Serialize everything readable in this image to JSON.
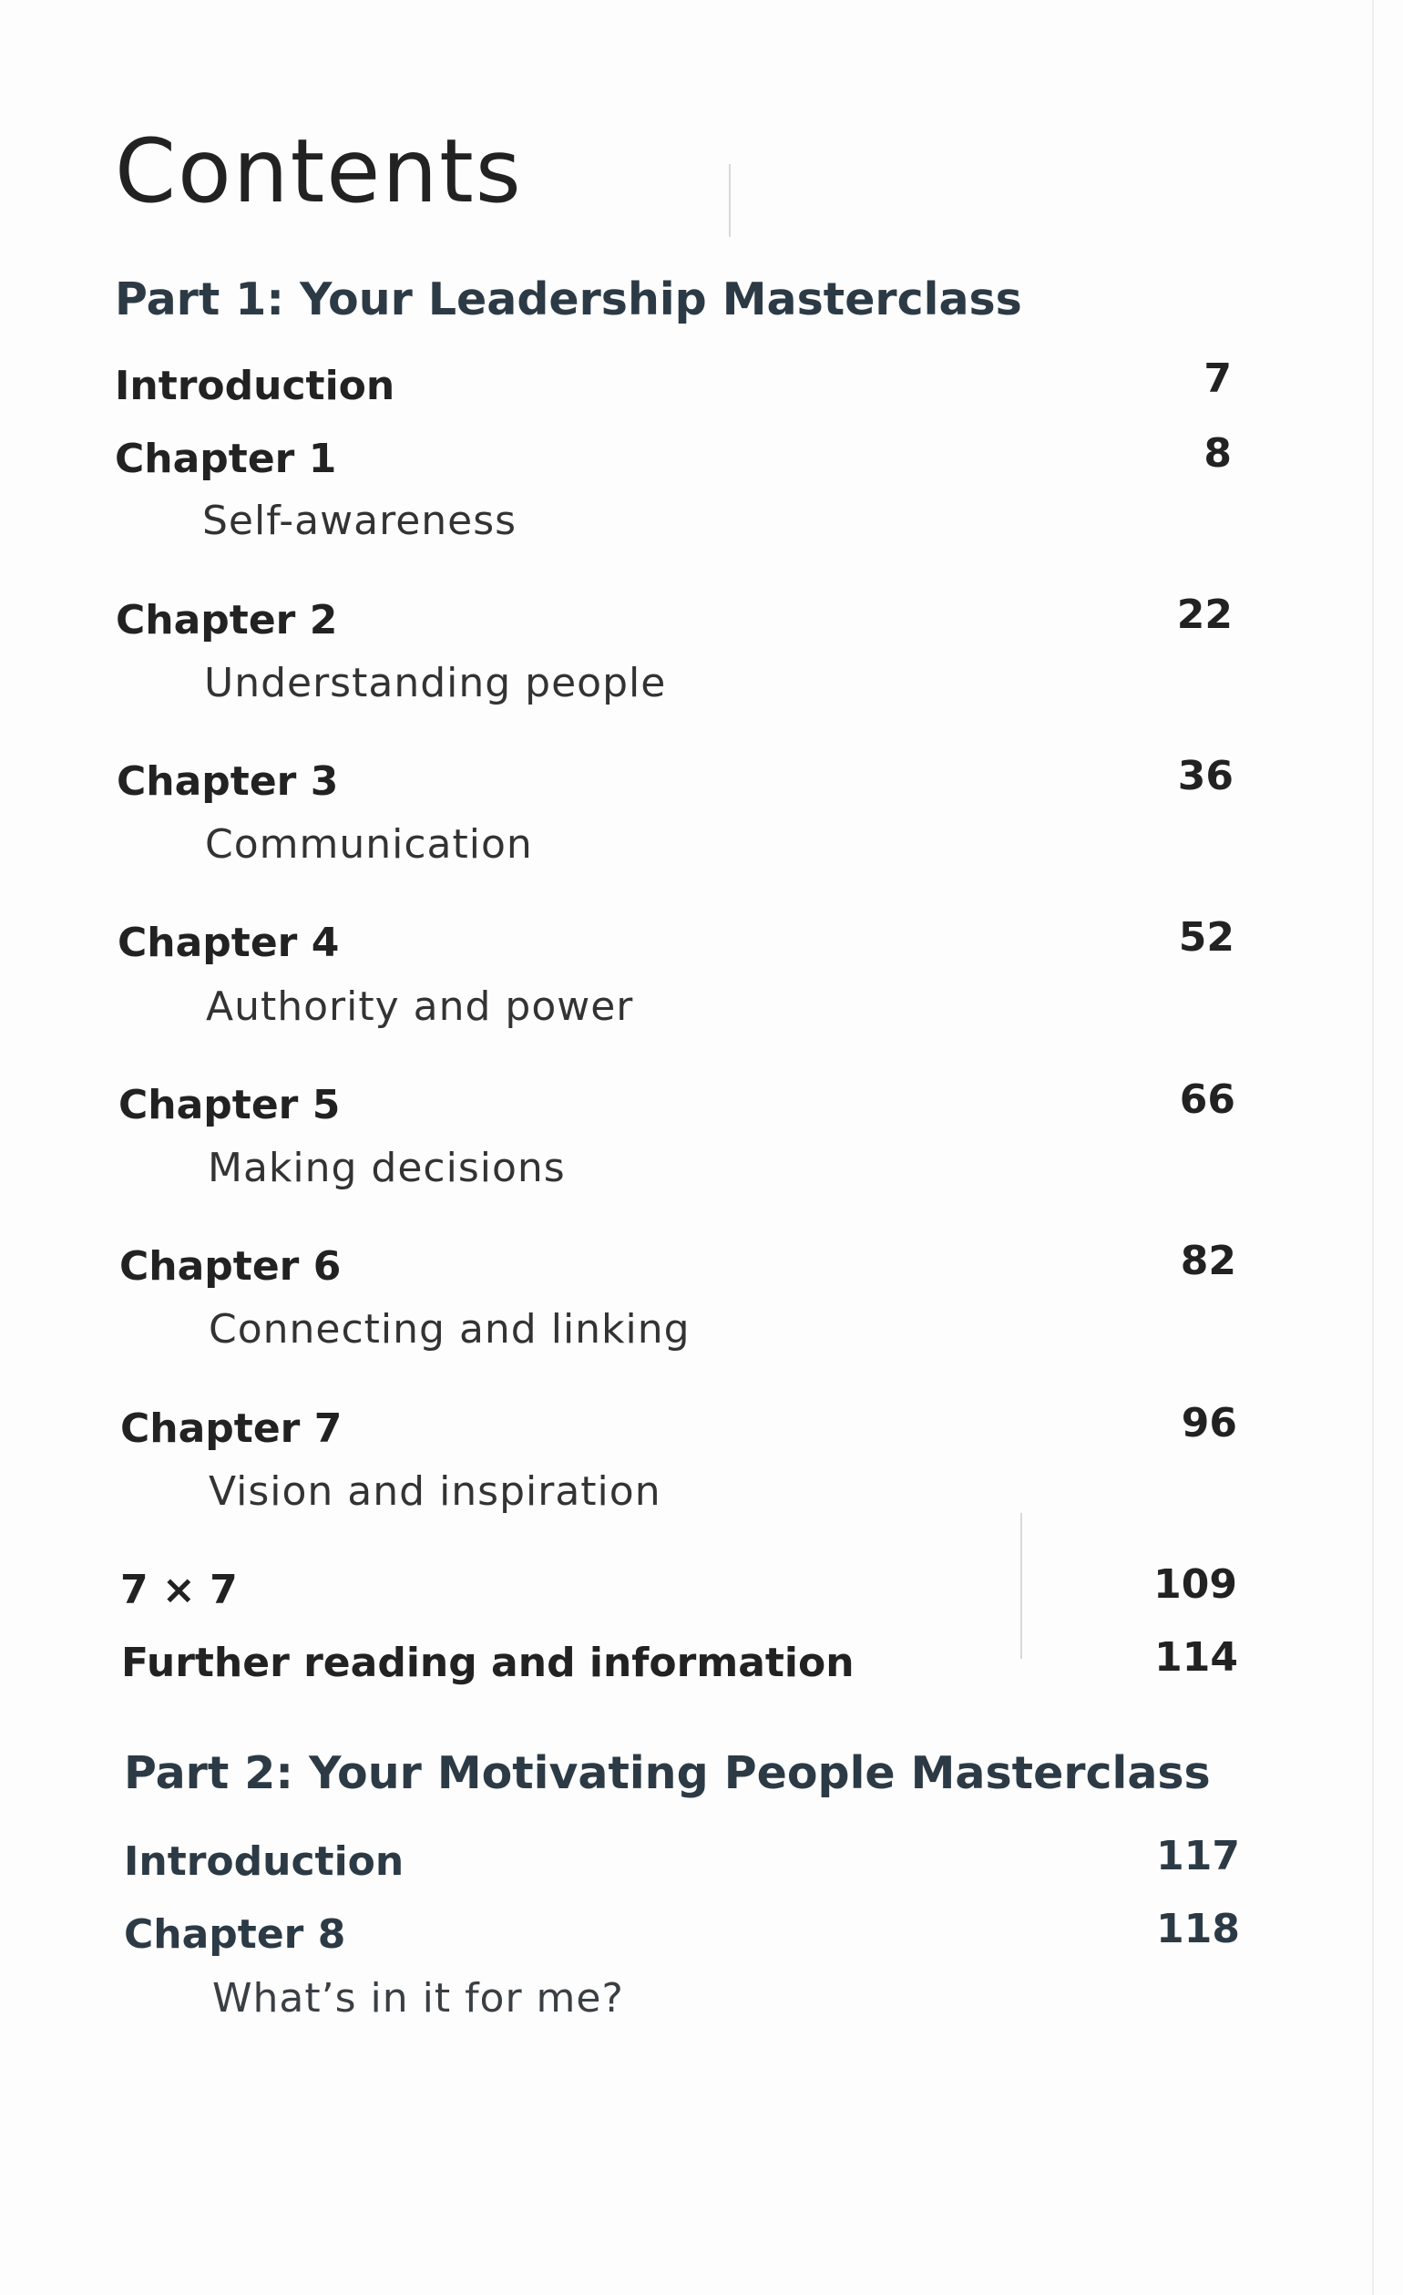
{
  "title": "Contents",
  "part1": {
    "heading": "Part 1: Your Leadership Masterclass",
    "introduction": {
      "label": "Introduction",
      "page": "7"
    },
    "chapters": [
      {
        "label": "Chapter 1",
        "subtitle": "Self-awareness",
        "page": "8"
      },
      {
        "label": "Chapter 2",
        "subtitle": "Understanding people",
        "page": "22"
      },
      {
        "label": "Chapter 3",
        "subtitle": "Communication",
        "page": "36"
      },
      {
        "label": "Chapter 4",
        "subtitle": "Authority and power",
        "page": "52"
      },
      {
        "label": "Chapter 5",
        "subtitle": "Making decisions",
        "page": "66"
      },
      {
        "label": "Chapter 6",
        "subtitle": "Connecting and linking",
        "page": "82"
      },
      {
        "label": "Chapter 7",
        "subtitle": "Vision and inspiration",
        "page": "96"
      }
    ],
    "seven_by_seven": {
      "label": "7 × 7",
      "page": "109"
    },
    "further_reading": {
      "label": "Further reading and information",
      "page": "114"
    }
  },
  "part2": {
    "heading": "Part 2: Your Motivating People Masterclass",
    "introduction": {
      "label": "Introduction",
      "page": "117"
    },
    "chapters": [
      {
        "label": "Chapter 8",
        "subtitle": "What’s in it for me?",
        "page": "118"
      }
    ]
  }
}
